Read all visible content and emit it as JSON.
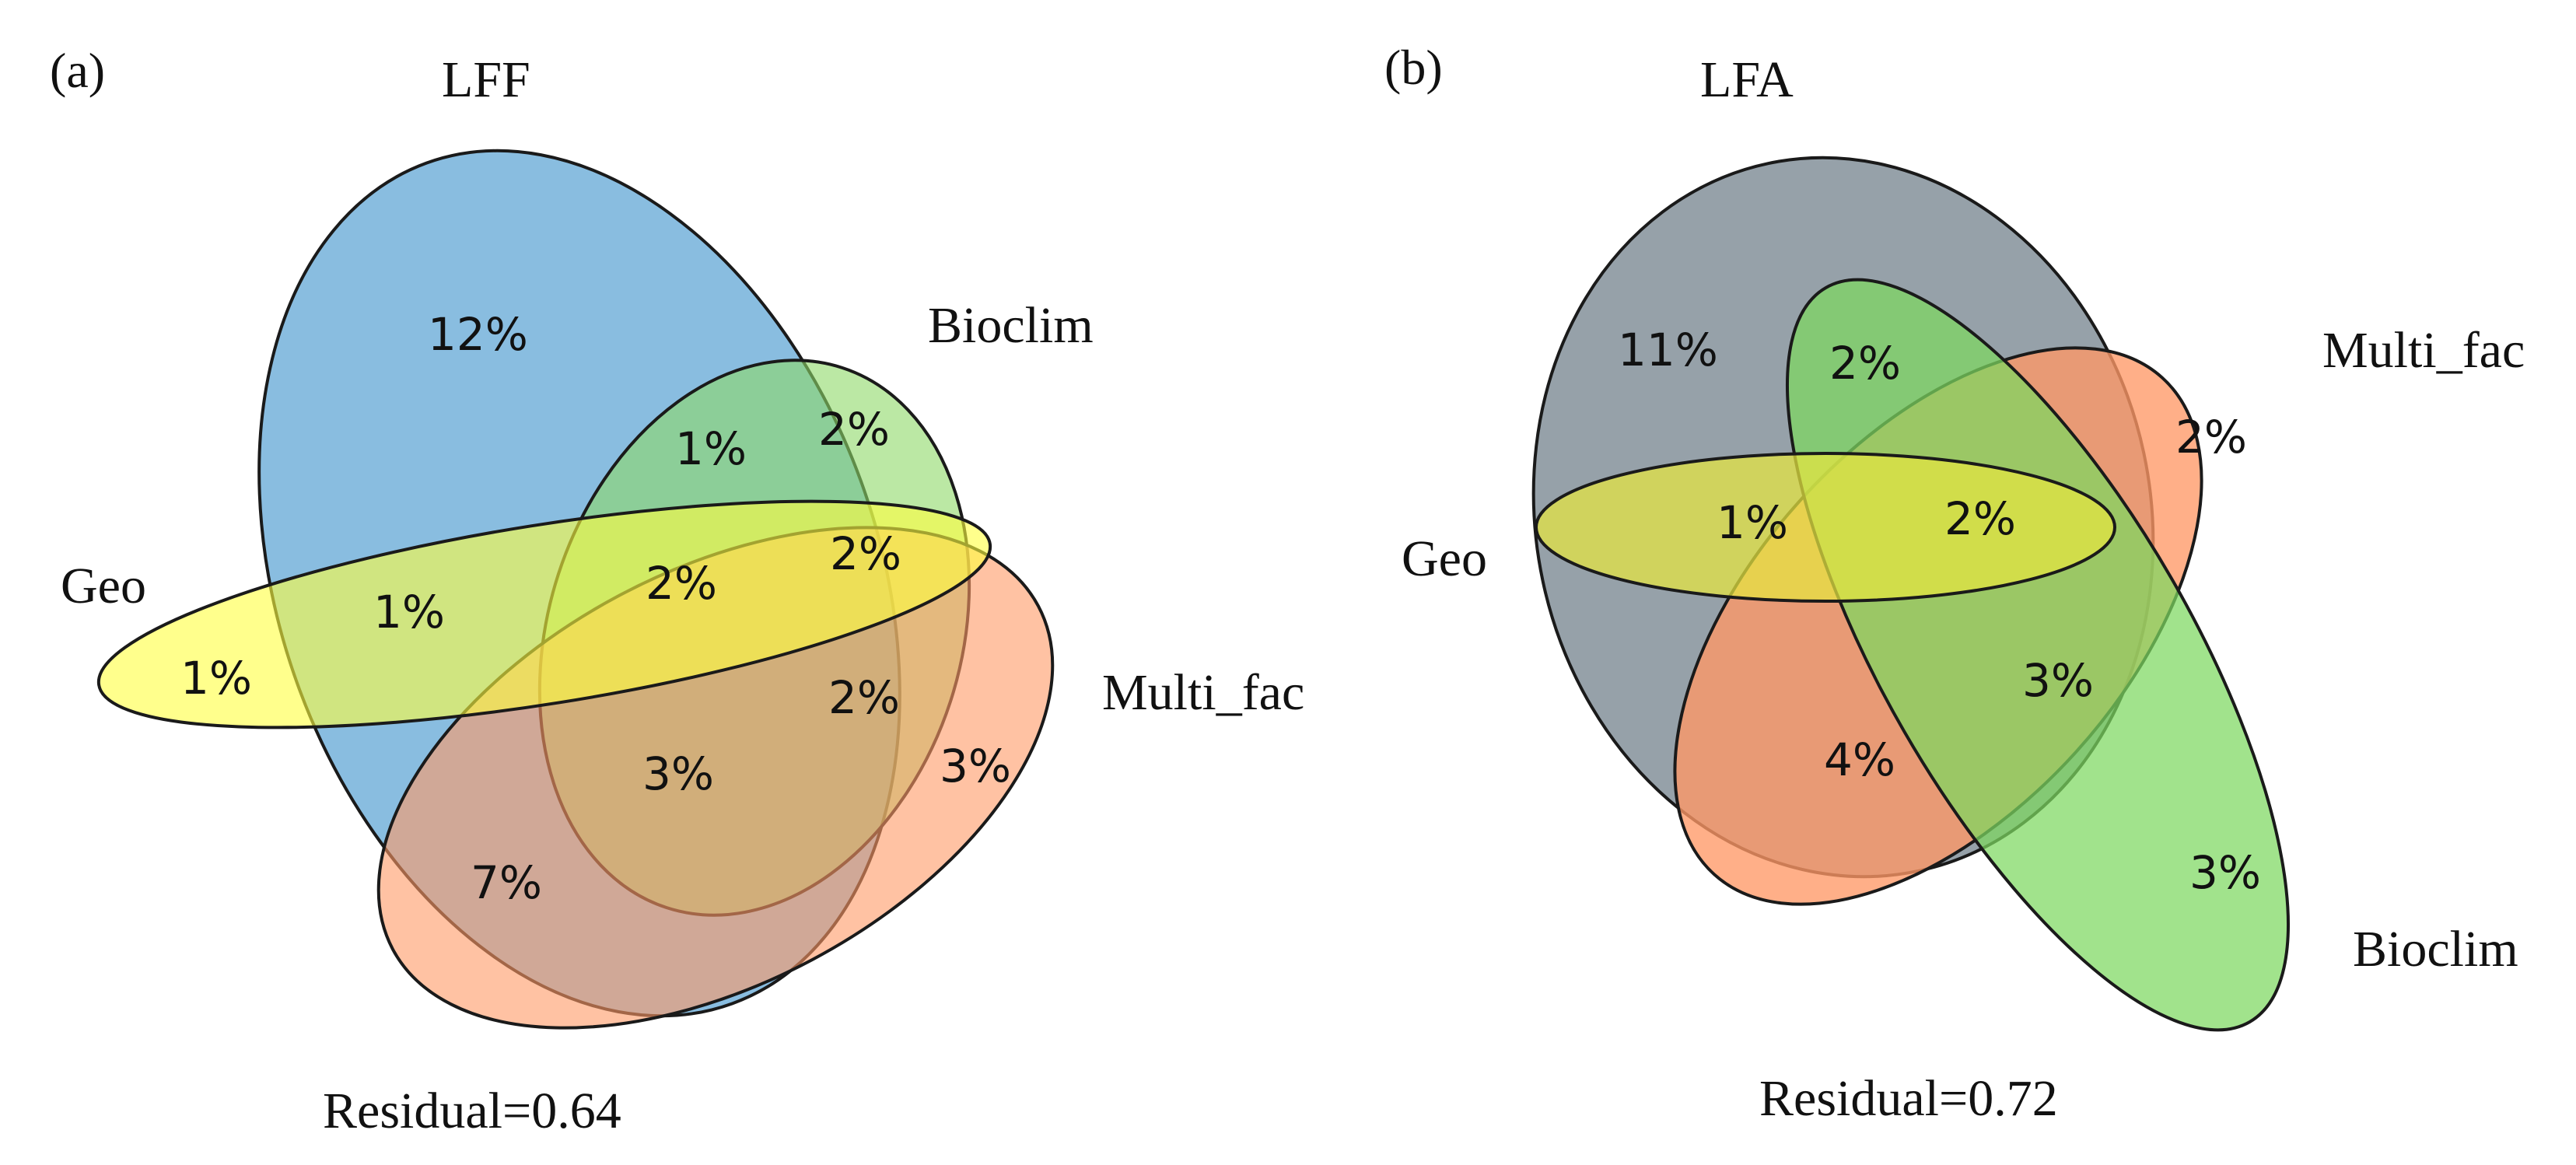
{
  "panels": [
    {
      "id": "a",
      "panel_label": "(a)",
      "residual": "Residual=0.64",
      "sets": {
        "lff": {
          "label": "LFF",
          "color": "#74b1db"
        },
        "bioclim": {
          "label": "Bioclim",
          "color": "#8ed868"
        },
        "geo": {
          "label": "Geo",
          "color": "#ffff40"
        },
        "multi_fac": {
          "label": "Multi_fac",
          "color": "#ff9966"
        }
      },
      "values": {
        "lff_only": "12%",
        "lff_bioclim": "1%",
        "bioclim_only": "2%",
        "geo_only": "1%",
        "geo_lff": "1%",
        "center": "2%",
        "geo_bioclim_multi": "2%",
        "bioclim_multi": "2%",
        "lff_bioclim_multi": "3%",
        "multi_only": "3%",
        "lff_multi": "7%"
      }
    },
    {
      "id": "b",
      "panel_label": "(b)",
      "residual": "Residual=0.72",
      "sets": {
        "lfa": {
          "label": "LFA",
          "color": "#7f8c96"
        },
        "multi_fac": {
          "label": "Multi_fac",
          "color": "#ff9966"
        },
        "geo": {
          "label": "Geo",
          "color": "#e6e640"
        },
        "bioclim": {
          "label": "Bioclim",
          "color": "#7dd860"
        }
      },
      "values": {
        "lfa_only": "11%",
        "lfa_bioclim": "2%",
        "multi_only": "2%",
        "geo_lfa": "1%",
        "center": "2%",
        "bioclim_multi": "3%",
        "lfa_multi": "4%",
        "bioclim_only": "3%"
      }
    }
  ]
}
